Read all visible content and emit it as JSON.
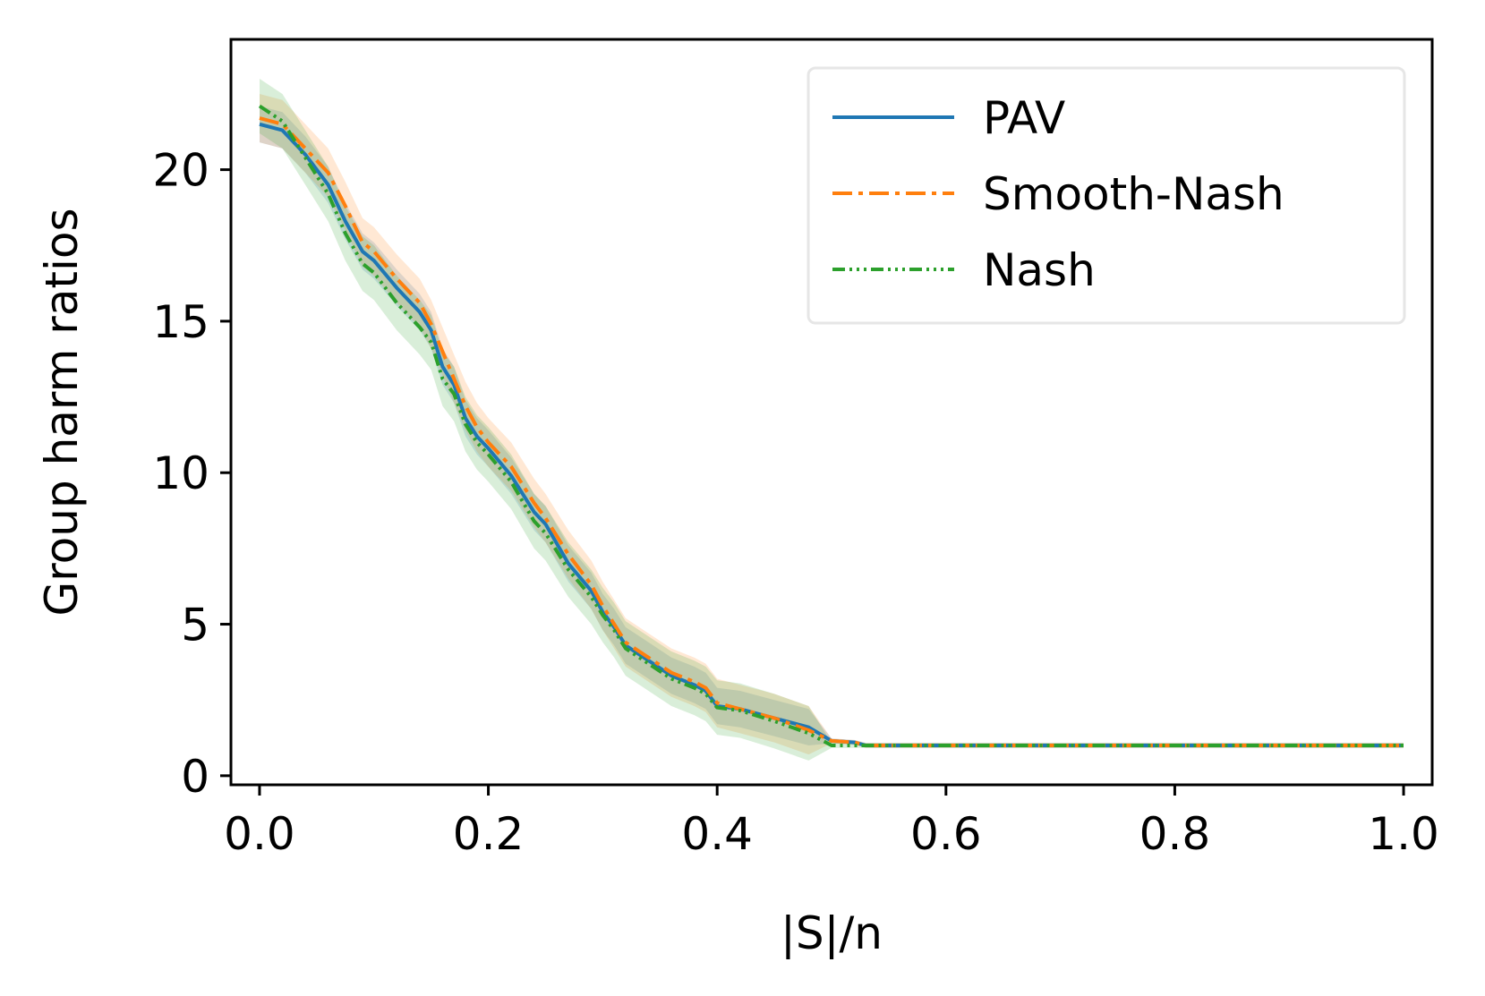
{
  "chart_data": {
    "type": "line",
    "xlabel": "|S|/n",
    "ylabel": "Group harm ratios",
    "xlim": [
      -0.025,
      1.025
    ],
    "ylim": [
      -0.3,
      24.3
    ],
    "xticks": [
      {
        "value": 0.0,
        "label": "0.0"
      },
      {
        "value": 0.2,
        "label": "0.2"
      },
      {
        "value": 0.4,
        "label": "0.4"
      },
      {
        "value": 0.6,
        "label": "0.6"
      },
      {
        "value": 0.8,
        "label": "0.8"
      },
      {
        "value": 1.0,
        "label": "1.0"
      }
    ],
    "yticks": [
      {
        "value": 0,
        "label": "0"
      },
      {
        "value": 5,
        "label": "5"
      },
      {
        "value": 10,
        "label": "10"
      },
      {
        "value": 15,
        "label": "15"
      },
      {
        "value": 20,
        "label": "20"
      }
    ],
    "legend_position": "top-right",
    "band_opacity": 0.18,
    "series": [
      {
        "name": "PAV",
        "color": "#1f77b4",
        "dash": "solid",
        "band": 0.6,
        "points": [
          [
            0.0,
            21.5
          ],
          [
            0.02,
            21.3
          ],
          [
            0.04,
            20.5
          ],
          [
            0.06,
            19.5
          ],
          [
            0.075,
            18.3
          ],
          [
            0.09,
            17.3
          ],
          [
            0.1,
            17.0
          ],
          [
            0.12,
            16.1
          ],
          [
            0.14,
            15.3
          ],
          [
            0.15,
            14.7
          ],
          [
            0.16,
            13.5
          ],
          [
            0.17,
            12.9
          ],
          [
            0.18,
            11.8
          ],
          [
            0.19,
            11.2
          ],
          [
            0.2,
            10.8
          ],
          [
            0.22,
            9.9
          ],
          [
            0.24,
            8.7
          ],
          [
            0.25,
            8.3
          ],
          [
            0.27,
            7.0
          ],
          [
            0.29,
            6.1
          ],
          [
            0.3,
            5.4
          ],
          [
            0.31,
            4.9
          ],
          [
            0.32,
            4.3
          ],
          [
            0.34,
            3.8
          ],
          [
            0.36,
            3.3
          ],
          [
            0.38,
            3.0
          ],
          [
            0.39,
            2.8
          ],
          [
            0.4,
            2.3
          ],
          [
            0.42,
            2.2
          ],
          [
            0.45,
            1.9
          ],
          [
            0.48,
            1.6
          ],
          [
            0.5,
            1.15
          ],
          [
            0.52,
            1.1
          ],
          [
            0.53,
            1.0
          ],
          [
            0.7,
            1.0
          ],
          [
            1.0,
            1.0
          ]
        ]
      },
      {
        "name": "Smooth-Nash",
        "color": "#ff7f0e",
        "dash": "22,7,5,7",
        "band": 0.8,
        "points": [
          [
            0.0,
            21.7
          ],
          [
            0.02,
            21.5
          ],
          [
            0.04,
            20.7
          ],
          [
            0.06,
            19.9
          ],
          [
            0.075,
            18.8
          ],
          [
            0.09,
            17.6
          ],
          [
            0.1,
            17.3
          ],
          [
            0.12,
            16.4
          ],
          [
            0.14,
            15.6
          ],
          [
            0.15,
            14.9
          ],
          [
            0.16,
            14.0
          ],
          [
            0.17,
            13.1
          ],
          [
            0.18,
            12.2
          ],
          [
            0.19,
            11.5
          ],
          [
            0.2,
            11.0
          ],
          [
            0.22,
            10.2
          ],
          [
            0.24,
            9.0
          ],
          [
            0.25,
            8.5
          ],
          [
            0.27,
            7.3
          ],
          [
            0.29,
            6.3
          ],
          [
            0.3,
            5.6
          ],
          [
            0.31,
            5.0
          ],
          [
            0.32,
            4.4
          ],
          [
            0.34,
            3.9
          ],
          [
            0.36,
            3.4
          ],
          [
            0.38,
            3.1
          ],
          [
            0.39,
            2.9
          ],
          [
            0.4,
            2.4
          ],
          [
            0.42,
            2.2
          ],
          [
            0.45,
            1.9
          ],
          [
            0.48,
            1.5
          ],
          [
            0.5,
            1.15
          ],
          [
            0.52,
            1.1
          ],
          [
            0.53,
            1.0
          ],
          [
            0.7,
            1.0
          ],
          [
            1.0,
            1.0
          ]
        ]
      },
      {
        "name": "Nash",
        "color": "#2ca02c",
        "dash": "14,5,3,5,3,5,3,5",
        "band": 0.9,
        "points": [
          [
            0.0,
            22.1
          ],
          [
            0.02,
            21.6
          ],
          [
            0.04,
            20.4
          ],
          [
            0.06,
            19.2
          ],
          [
            0.075,
            17.9
          ],
          [
            0.09,
            16.9
          ],
          [
            0.1,
            16.6
          ],
          [
            0.12,
            15.6
          ],
          [
            0.14,
            14.8
          ],
          [
            0.15,
            14.3
          ],
          [
            0.16,
            13.1
          ],
          [
            0.17,
            12.6
          ],
          [
            0.18,
            11.6
          ],
          [
            0.19,
            11.0
          ],
          [
            0.2,
            10.6
          ],
          [
            0.22,
            9.7
          ],
          [
            0.24,
            8.4
          ],
          [
            0.25,
            8.0
          ],
          [
            0.27,
            6.8
          ],
          [
            0.29,
            5.9
          ],
          [
            0.3,
            5.3
          ],
          [
            0.31,
            4.8
          ],
          [
            0.32,
            4.2
          ],
          [
            0.34,
            3.7
          ],
          [
            0.36,
            3.2
          ],
          [
            0.38,
            2.9
          ],
          [
            0.39,
            2.7
          ],
          [
            0.4,
            2.25
          ],
          [
            0.42,
            2.15
          ],
          [
            0.45,
            1.8
          ],
          [
            0.48,
            1.4
          ],
          [
            0.5,
            1.0
          ],
          [
            0.52,
            1.0
          ],
          [
            0.53,
            1.0
          ],
          [
            0.7,
            1.0
          ],
          [
            1.0,
            1.0
          ]
        ]
      }
    ]
  }
}
